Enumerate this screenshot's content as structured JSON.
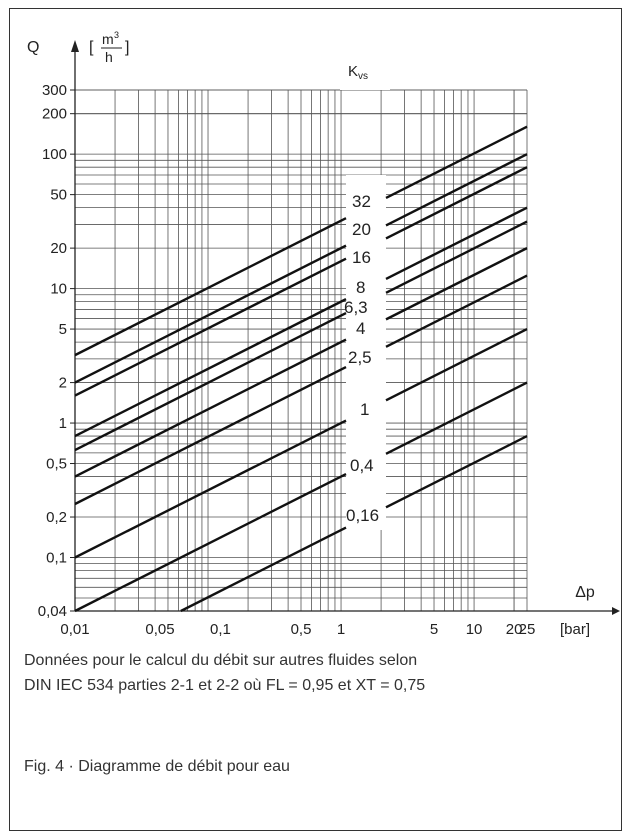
{
  "chart_data": {
    "type": "line",
    "title": "",
    "y_axis": {
      "symbol": "Q",
      "unit_open": "[",
      "unit_numerator": "m3",
      "unit_denominator": "h",
      "unit_close": "]",
      "scale": "log",
      "range": [
        0.04,
        300
      ],
      "ticks": [
        "0,04",
        "0,1",
        "0,2",
        "0,5",
        "1",
        "2",
        "5",
        "10",
        "20",
        "50",
        "100",
        "200",
        "300"
      ],
      "tick_values": [
        0.04,
        0.1,
        0.2,
        0.5,
        1,
        2,
        5,
        10,
        20,
        50,
        100,
        200,
        300
      ]
    },
    "x_axis": {
      "symbol": "Δp",
      "unit": "[bar]",
      "scale": "log",
      "range": [
        0.01,
        25
      ],
      "ticks": [
        "0,01",
        "0,05",
        "0,1",
        "0,5",
        "1",
        "5",
        "10",
        "20",
        "25"
      ],
      "tick_values": [
        0.01,
        0.05,
        0.1,
        0.5,
        1,
        5,
        10,
        20,
        25
      ]
    },
    "legend_title": "Kvs",
    "series": [
      {
        "name": "32",
        "kvs": 32
      },
      {
        "name": "20",
        "kvs": 20
      },
      {
        "name": "16",
        "kvs": 16
      },
      {
        "name": "8",
        "kvs": 8
      },
      {
        "name": "6,3",
        "kvs": 6.3
      },
      {
        "name": "4",
        "kvs": 4
      },
      {
        "name": "2,5",
        "kvs": 2.5
      },
      {
        "name": "1",
        "kvs": 1
      },
      {
        "name": "0,4",
        "kvs": 0.4
      },
      {
        "name": "0,16",
        "kvs": 0.16
      }
    ],
    "relation": "Q = Kvs * sqrt(Δp)",
    "grid": true
  },
  "note": {
    "line1": "Données pour le calcul du débit sur autres fluides selon",
    "line2": "DIN IEC 534 parties 2-1 et 2-2 où FL = 0,95 et XT = 0,75"
  },
  "caption": "Fig. 4 · Diagramme de débit pour eau"
}
